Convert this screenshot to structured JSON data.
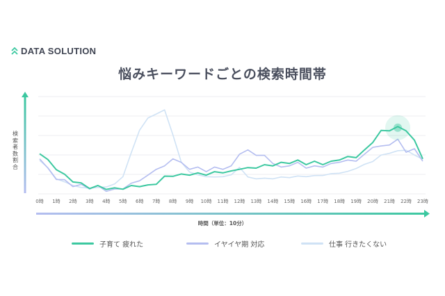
{
  "brand": {
    "logo_text": "DATA SOLUTION",
    "logo_icon": "double-chevron-up-icon"
  },
  "chart_data": {
    "type": "line",
    "title": "悩みキーワードごとの検索時間帯",
    "xlabel": "時間（単位：10分）",
    "ylabel": "検索者数割合",
    "x_tick_labels": [
      "0時",
      "1時",
      "2時",
      "3時",
      "4時",
      "5時",
      "6時",
      "7時",
      "8時",
      "9時",
      "10時",
      "11時",
      "12時",
      "13時",
      "14時",
      "15時",
      "16時",
      "17時",
      "18時",
      "19時",
      "20時",
      "21時",
      "22時",
      "23時"
    ],
    "x": [
      0,
      0.5,
      1,
      1.5,
      2,
      2.5,
      3,
      3.5,
      4,
      4.5,
      5,
      5.5,
      6,
      6.5,
      7,
      7.5,
      8,
      8.5,
      9,
      9.5,
      10,
      10.5,
      11,
      11.5,
      12,
      12.5,
      13,
      13.5,
      14,
      14.5,
      15,
      15.5,
      16,
      16.5,
      17,
      17.5,
      18,
      18.5,
      19,
      19.5,
      20,
      20.5,
      21,
      21.5,
      22,
      22.5,
      23
    ],
    "xlim": [
      0,
      23
    ],
    "ylim": [
      0,
      5
    ],
    "y_tick_labels_shown": false,
    "grid": true,
    "legend_position": "bottom",
    "highlight": {
      "series": "子育て 疲れた",
      "x": 21.5
    },
    "series": [
      {
        "name": "子育て 疲れた",
        "color": "#3cc8a0",
        "values": [
          2.12,
          1.7,
          1.3,
          0.95,
          0.67,
          0.5,
          0.33,
          0.37,
          0.29,
          0.25,
          0.3,
          0.37,
          0.43,
          0.4,
          0.55,
          0.85,
          0.96,
          0.96,
          1.02,
          1.02,
          1.02,
          1.08,
          1.14,
          1.12,
          1.32,
          1.29,
          1.38,
          1.44,
          1.5,
          1.56,
          1.62,
          1.68,
          1.56,
          1.62,
          1.56,
          1.62,
          1.8,
          1.86,
          1.92,
          2.2,
          2.7,
          3.2,
          3.3,
          3.4,
          3.3,
          2.7,
          1.86
        ]
      },
      {
        "name": "イヤイヤ期 対応",
        "color": "#b4bdf0",
        "values": [
          1.86,
          1.26,
          0.8,
          0.67,
          0.43,
          0.43,
          0.31,
          0.37,
          0.19,
          0.19,
          0.31,
          0.49,
          0.73,
          0.9,
          1.32,
          1.38,
          1.86,
          1.56,
          1.32,
          1.32,
          1.2,
          1.32,
          1.32,
          1.38,
          2.1,
          2.2,
          2.04,
          1.92,
          1.62,
          1.32,
          1.5,
          1.56,
          1.38,
          1.38,
          1.44,
          1.5,
          1.68,
          1.68,
          1.74,
          1.98,
          2.45,
          2.4,
          2.57,
          2.75,
          2.2,
          2.26,
          1.74
        ]
      },
      {
        "name": "仕事 行きたくない",
        "color": "#cfe2f5",
        "values": [
          1.74,
          1.32,
          0.79,
          0.6,
          0.45,
          0.31,
          0.31,
          0.31,
          0.37,
          0.49,
          0.9,
          2.1,
          3.29,
          3.88,
          4.12,
          4.3,
          3.05,
          1.62,
          1.14,
          0.96,
          0.9,
          0.85,
          0.9,
          0.96,
          1.38,
          0.85,
          0.79,
          0.79,
          0.79,
          0.85,
          0.85,
          0.9,
          0.9,
          0.92,
          0.96,
          1.02,
          1.08,
          1.14,
          1.32,
          1.5,
          1.68,
          1.98,
          2.1,
          2.2,
          2.26,
          1.98,
          1.8
        ]
      }
    ]
  }
}
